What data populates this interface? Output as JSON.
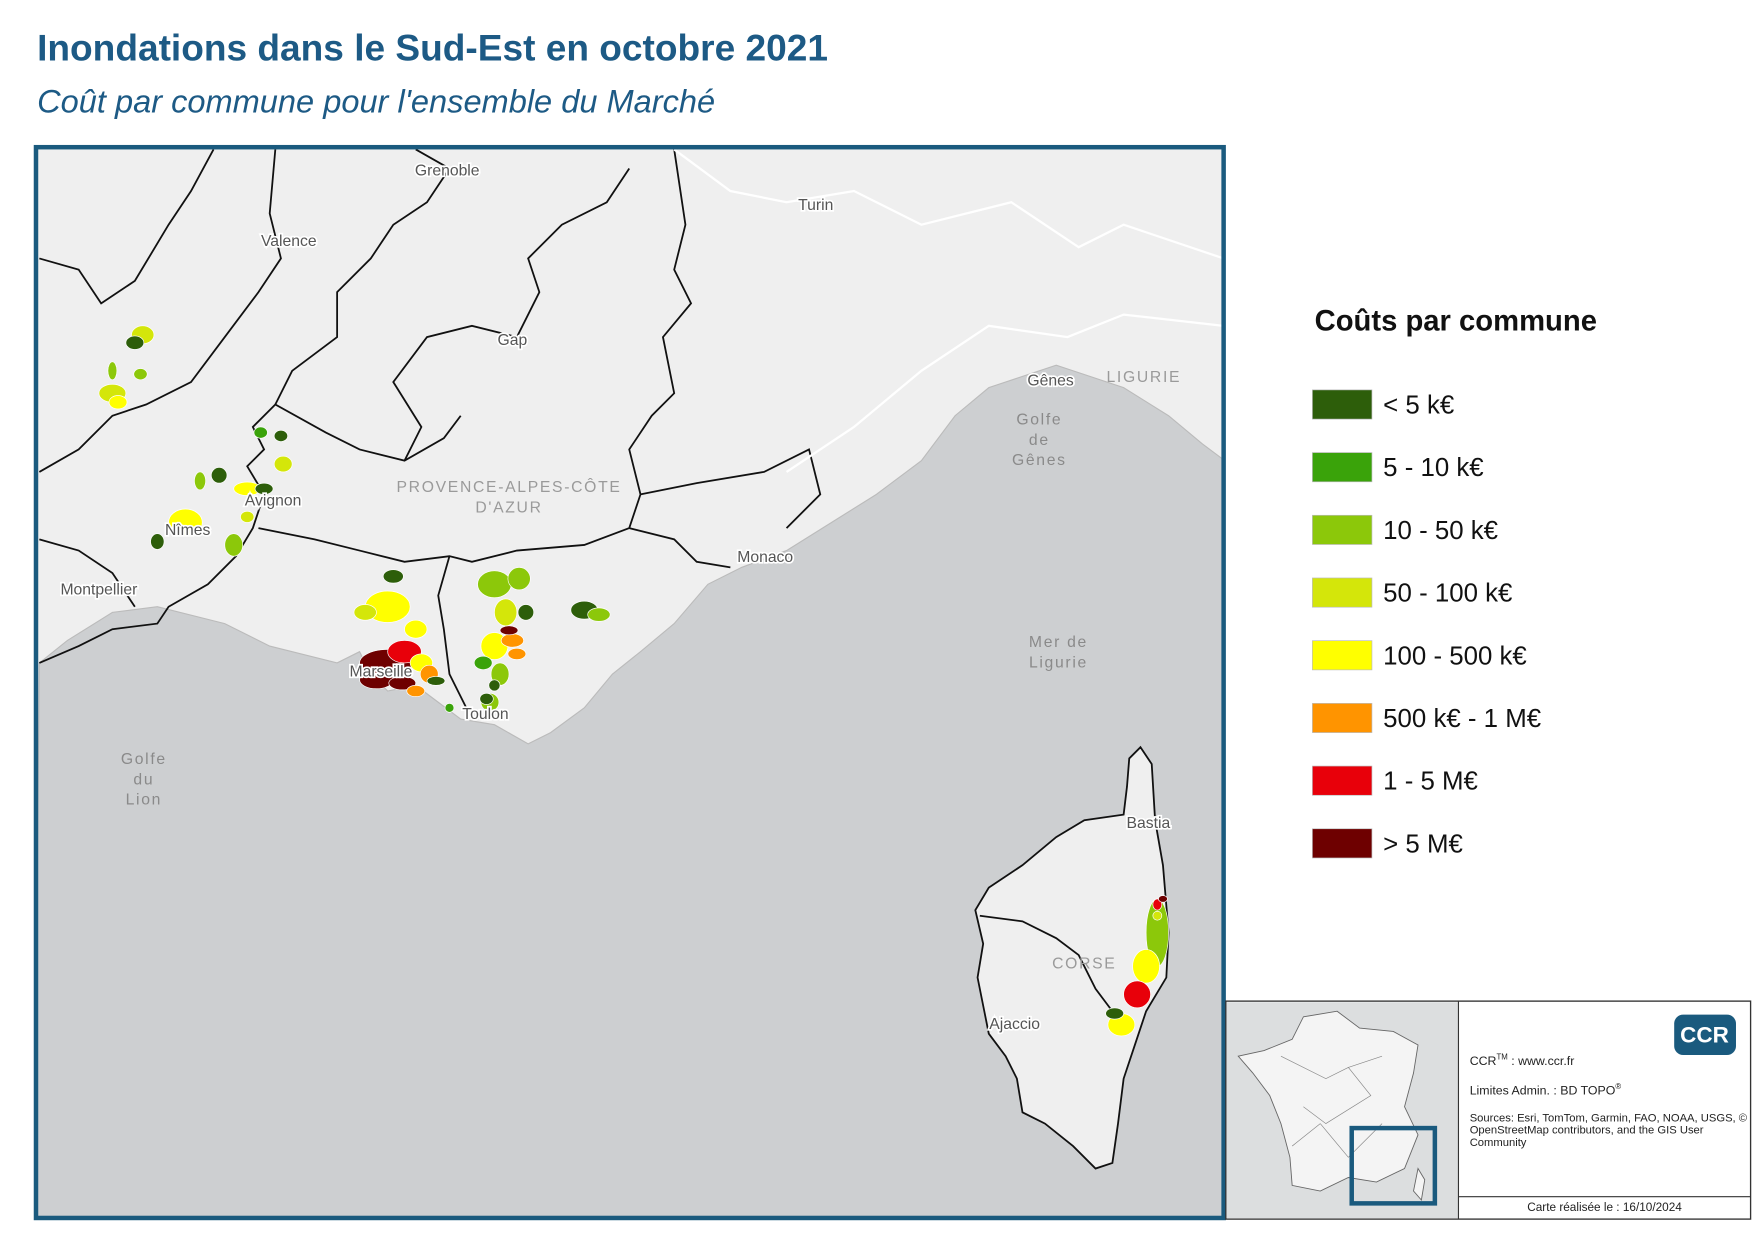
{
  "header": {
    "title": "Inondations dans le Sud-Est en octobre 2021",
    "subtitle": "Coût par commune pour l'ensemble du Marché"
  },
  "map": {
    "places": [
      "Grenoble",
      "Turin",
      "Valence",
      "Gap",
      "Gênes",
      "LIGURIE",
      [
        "Golfe",
        "de",
        "Gênes"
      ],
      [
        "PROVENCE-ALPES-CÔTE",
        "D'AZUR"
      ],
      "Avignon",
      "Nîmes",
      "Montpellier",
      "Monaco",
      [
        "Mer de",
        "Ligurie"
      ],
      "Marseille",
      "Toulon",
      [
        "Golfe",
        "du",
        "Lion"
      ],
      "Bastia",
      "CORSE",
      "Ajaccio"
    ]
  },
  "legend": {
    "title": "Coûts par commune",
    "items": [
      {
        "label": "< 5 k€",
        "color": "#2d5e0a"
      },
      {
        "label": "5 - 10 k€",
        "color": "#3aa30a"
      },
      {
        "label": "10 - 50 k€",
        "color": "#8cc80a"
      },
      {
        "label": "50 - 100 k€",
        "color": "#d4e60a"
      },
      {
        "label": "100 - 500 k€",
        "color": "#ffff00"
      },
      {
        "label": "500 k€ - 1 M€",
        "color": "#ff9400"
      },
      {
        "label": "1 - 5 M€",
        "color": "#e8000a"
      },
      {
        "label": "> 5 M€",
        "color": "#6e0000"
      }
    ]
  },
  "info": {
    "logo": "CCR",
    "website": {
      "brand": "CCR",
      "mark": "TM",
      "text": " : www.ccr.fr"
    },
    "limits": {
      "text": "Limites Admin. : BD TOPO",
      "mark": "®"
    },
    "sources": [
      "Sources: Esri, TomTom, Garmin, FAO, NOAA, USGS, ©",
      "OpenStreetMap contributors, and the GIS User",
      "Community"
    ],
    "date": "Carte réalisée le : 16/10/2024"
  }
}
